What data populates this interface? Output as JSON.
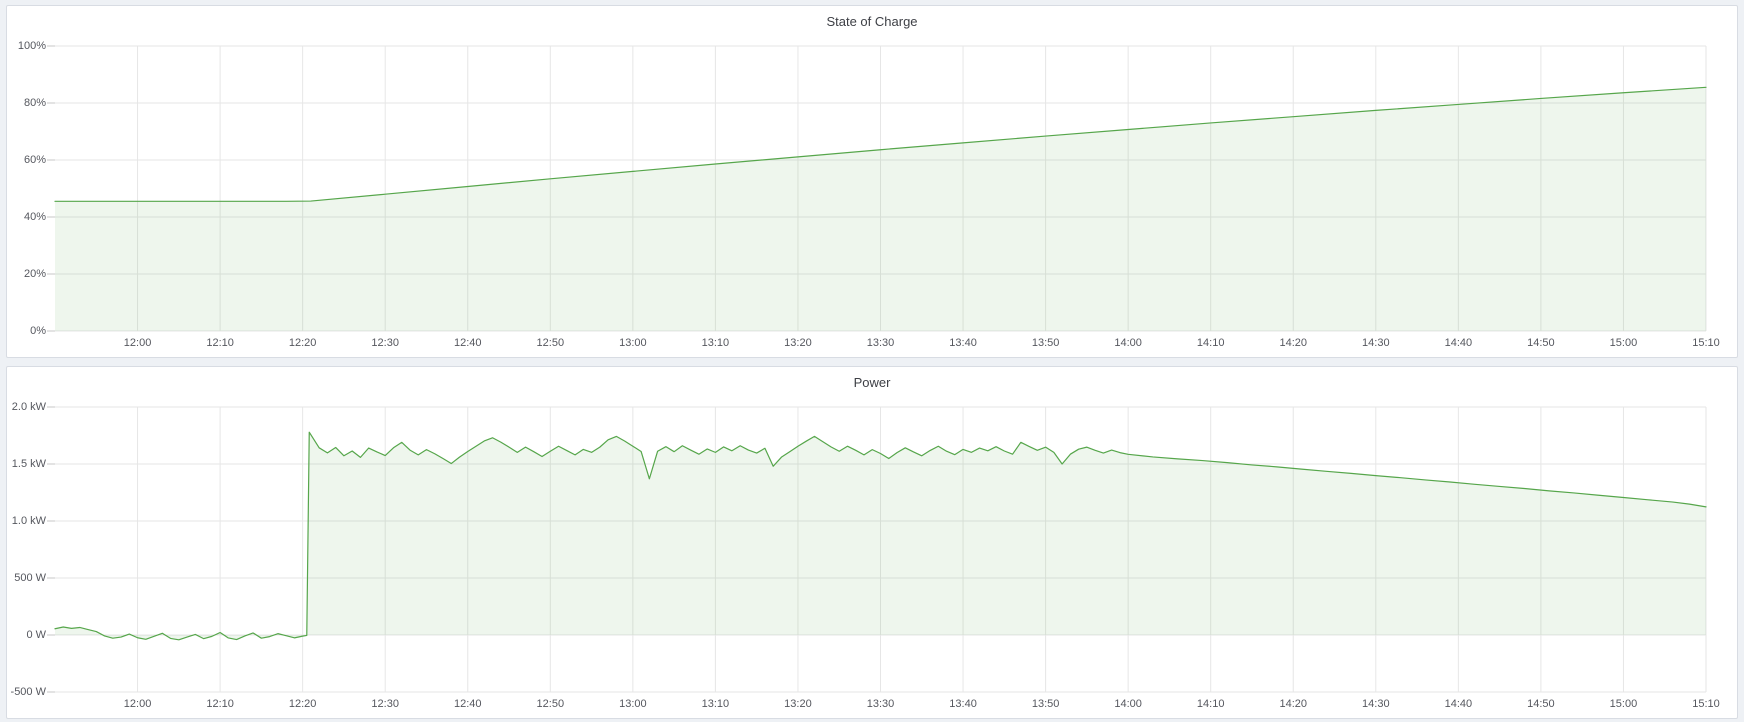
{
  "page": {
    "background_color": "#eef1f5",
    "panel_background": "#ffffff",
    "panel_border_color": "#d8dce3",
    "grid_color": "#e6e6e6",
    "tick_mark_color": "#c7c7c7",
    "tick_text_color": "#55575e",
    "title_text_color": "#3e4046",
    "accent_green": "#56A64B"
  },
  "chart_data": [
    {
      "type": "area",
      "title": "State of Charge",
      "ylabel": "",
      "xlabel": "",
      "legend": "none",
      "grid": true,
      "line_color": "#56A64B",
      "fill_color": "rgba(86,166,75,0.10)",
      "xlim": [
        0,
        200
      ],
      "ylim": [
        0,
        100
      ],
      "x_tick_values": [
        10,
        20,
        30,
        40,
        50,
        60,
        70,
        80,
        90,
        100,
        110,
        120,
        130,
        140,
        150,
        160,
        170,
        180,
        190,
        200
      ],
      "x_tick_labels": [
        "12:00",
        "12:10",
        "12:20",
        "12:30",
        "12:40",
        "12:50",
        "13:00",
        "13:10",
        "13:20",
        "13:30",
        "13:40",
        "13:50",
        "14:00",
        "14:10",
        "14:20",
        "14:30",
        "14:40",
        "14:50",
        "15:00",
        "15:10"
      ],
      "y_tick_values": [
        100,
        80,
        60,
        40,
        20,
        0
      ],
      "y_tick_labels": [
        "100%",
        "80%",
        "60%",
        "40%",
        "20%",
        "0%"
      ],
      "points": [
        [
          0,
          45.5
        ],
        [
          10,
          45.5
        ],
        [
          20,
          45.5
        ],
        [
          28,
          45.5
        ],
        [
          31,
          45.6
        ],
        [
          40,
          48.0
        ],
        [
          50,
          50.7
        ],
        [
          60,
          53.4
        ],
        [
          70,
          56.0
        ],
        [
          80,
          58.6
        ],
        [
          90,
          61.1
        ],
        [
          100,
          63.6
        ],
        [
          110,
          66.0
        ],
        [
          120,
          68.4
        ],
        [
          130,
          70.7
        ],
        [
          140,
          73.0
        ],
        [
          150,
          75.2
        ],
        [
          160,
          77.4
        ],
        [
          170,
          79.5
        ],
        [
          180,
          81.6
        ],
        [
          190,
          83.6
        ],
        [
          200,
          85.5
        ]
      ]
    },
    {
      "type": "area",
      "title": "Power",
      "ylabel": "",
      "xlabel": "",
      "legend": "none",
      "grid": true,
      "line_color": "#56A64B",
      "fill_color": "rgba(86,166,75,0.10)",
      "xlim": [
        0,
        200
      ],
      "ylim": [
        -500,
        2000
      ],
      "x_tick_values": [
        10,
        20,
        30,
        40,
        50,
        60,
        70,
        80,
        90,
        100,
        110,
        120,
        130,
        140,
        150,
        160,
        170,
        180,
        190,
        200
      ],
      "x_tick_labels": [
        "12:00",
        "12:10",
        "12:20",
        "12:30",
        "12:40",
        "12:50",
        "13:00",
        "13:10",
        "13:20",
        "13:30",
        "13:40",
        "13:50",
        "14:00",
        "14:10",
        "14:20",
        "14:30",
        "14:40",
        "14:50",
        "15:00",
        "15:10"
      ],
      "y_tick_values": [
        2000,
        1500,
        1000,
        500,
        0,
        -500
      ],
      "y_tick_labels": [
        "2.0 kW",
        "1.5 kW",
        "1.0 kW",
        "500 W",
        "0 W",
        "-500 W"
      ],
      "points": [
        [
          0,
          55
        ],
        [
          1,
          70
        ],
        [
          2,
          58
        ],
        [
          3,
          66
        ],
        [
          4,
          48
        ],
        [
          5,
          30
        ],
        [
          6,
          -8
        ],
        [
          7,
          -28
        ],
        [
          8,
          -18
        ],
        [
          9,
          8
        ],
        [
          10,
          -24
        ],
        [
          11,
          -38
        ],
        [
          12,
          -12
        ],
        [
          13,
          15
        ],
        [
          14,
          -30
        ],
        [
          15,
          -42
        ],
        [
          16,
          -18
        ],
        [
          17,
          5
        ],
        [
          18,
          -32
        ],
        [
          19,
          -12
        ],
        [
          20,
          22
        ],
        [
          21,
          -26
        ],
        [
          22,
          -40
        ],
        [
          23,
          -8
        ],
        [
          24,
          18
        ],
        [
          25,
          -28
        ],
        [
          26,
          -14
        ],
        [
          27,
          12
        ],
        [
          28,
          -6
        ],
        [
          29,
          -25
        ],
        [
          30,
          -10
        ],
        [
          30.5,
          -4
        ],
        [
          30.8,
          1779
        ],
        [
          32,
          1642
        ],
        [
          33,
          1598
        ],
        [
          34,
          1645
        ],
        [
          35,
          1572
        ],
        [
          36,
          1614
        ],
        [
          37,
          1558
        ],
        [
          38,
          1640
        ],
        [
          39,
          1606
        ],
        [
          40,
          1574
        ],
        [
          41,
          1642
        ],
        [
          42,
          1690
        ],
        [
          43,
          1622
        ],
        [
          44,
          1580
        ],
        [
          45,
          1626
        ],
        [
          46,
          1590
        ],
        [
          47,
          1548
        ],
        [
          48,
          1504
        ],
        [
          49,
          1560
        ],
        [
          50,
          1610
        ],
        [
          51,
          1656
        ],
        [
          52,
          1702
        ],
        [
          53,
          1730
        ],
        [
          54,
          1692
        ],
        [
          55,
          1648
        ],
        [
          56,
          1602
        ],
        [
          57,
          1648
        ],
        [
          58,
          1608
        ],
        [
          59,
          1566
        ],
        [
          60,
          1612
        ],
        [
          61,
          1656
        ],
        [
          62,
          1618
        ],
        [
          63,
          1580
        ],
        [
          64,
          1628
        ],
        [
          65,
          1602
        ],
        [
          66,
          1648
        ],
        [
          67,
          1712
        ],
        [
          68,
          1742
        ],
        [
          69,
          1702
        ],
        [
          70,
          1656
        ],
        [
          71,
          1610
        ],
        [
          72,
          1370
        ],
        [
          73,
          1612
        ],
        [
          74,
          1652
        ],
        [
          75,
          1608
        ],
        [
          76,
          1660
        ],
        [
          77,
          1622
        ],
        [
          78,
          1586
        ],
        [
          79,
          1632
        ],
        [
          80,
          1602
        ],
        [
          81,
          1650
        ],
        [
          82,
          1616
        ],
        [
          83,
          1660
        ],
        [
          84,
          1622
        ],
        [
          85,
          1596
        ],
        [
          86,
          1638
        ],
        [
          87,
          1480
        ],
        [
          88,
          1560
        ],
        [
          89,
          1608
        ],
        [
          90,
          1656
        ],
        [
          91,
          1700
        ],
        [
          92,
          1742
        ],
        [
          93,
          1696
        ],
        [
          94,
          1650
        ],
        [
          95,
          1612
        ],
        [
          96,
          1656
        ],
        [
          97,
          1620
        ],
        [
          98,
          1580
        ],
        [
          99,
          1626
        ],
        [
          100,
          1592
        ],
        [
          101,
          1548
        ],
        [
          102,
          1600
        ],
        [
          103,
          1642
        ],
        [
          104,
          1606
        ],
        [
          105,
          1572
        ],
        [
          106,
          1618
        ],
        [
          107,
          1656
        ],
        [
          108,
          1612
        ],
        [
          109,
          1582
        ],
        [
          110,
          1628
        ],
        [
          111,
          1602
        ],
        [
          112,
          1640
        ],
        [
          113,
          1616
        ],
        [
          114,
          1652
        ],
        [
          115,
          1614
        ],
        [
          116,
          1586
        ],
        [
          117,
          1690
        ],
        [
          118,
          1654
        ],
        [
          119,
          1620
        ],
        [
          120,
          1648
        ],
        [
          121,
          1602
        ],
        [
          122,
          1500
        ],
        [
          123,
          1586
        ],
        [
          124,
          1630
        ],
        [
          125,
          1648
        ],
        [
          126,
          1620
        ],
        [
          127,
          1596
        ],
        [
          128,
          1622
        ],
        [
          129,
          1600
        ],
        [
          130,
          1585
        ],
        [
          133,
          1562
        ],
        [
          136,
          1545
        ],
        [
          139,
          1530
        ],
        [
          142,
          1512
        ],
        [
          145,
          1492
        ],
        [
          148,
          1475
        ],
        [
          151,
          1455
        ],
        [
          154,
          1436
        ],
        [
          157,
          1418
        ],
        [
          160,
          1398
        ],
        [
          163,
          1380
        ],
        [
          166,
          1360
        ],
        [
          169,
          1342
        ],
        [
          172,
          1322
        ],
        [
          175,
          1303
        ],
        [
          178,
          1285
        ],
        [
          181,
          1264
        ],
        [
          184,
          1246
        ],
        [
          187,
          1226
        ],
        [
          190,
          1206
        ],
        [
          193,
          1186
        ],
        [
          196,
          1166
        ],
        [
          198,
          1148
        ],
        [
          200,
          1124
        ]
      ]
    }
  ]
}
